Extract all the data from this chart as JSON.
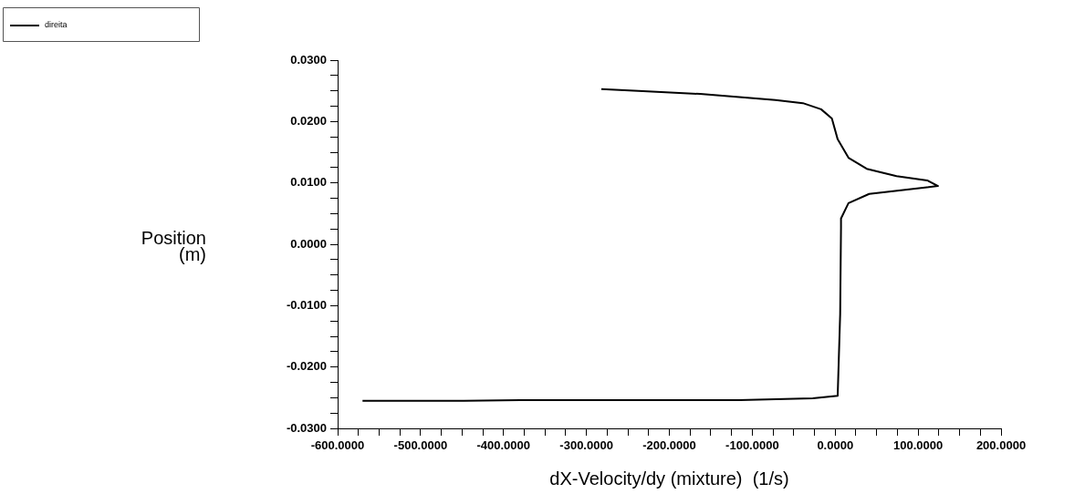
{
  "chart_data": {
    "type": "line",
    "xlabel": "dX-Velocity/dy (mixture)  (1/s)",
    "ylabel": "Position (m)",
    "legend": "top left",
    "grid": false,
    "marker": "none",
    "line_style": "solid",
    "xlim": [
      -600,
      200
    ],
    "ylim": [
      -0.03,
      0.03
    ],
    "xticks": [
      {
        "value": -600,
        "label": "-600.0000"
      },
      {
        "value": -575,
        "label": null
      },
      {
        "value": -550,
        "label": null
      },
      {
        "value": -525,
        "label": null
      },
      {
        "value": -500,
        "label": "-500.0000"
      },
      {
        "value": -475,
        "label": null
      },
      {
        "value": -450,
        "label": null
      },
      {
        "value": -425,
        "label": null
      },
      {
        "value": -400,
        "label": "-400.0000"
      },
      {
        "value": -375,
        "label": null
      },
      {
        "value": -350,
        "label": null
      },
      {
        "value": -325,
        "label": null
      },
      {
        "value": -300,
        "label": "-300.0000"
      },
      {
        "value": -275,
        "label": null
      },
      {
        "value": -250,
        "label": null
      },
      {
        "value": -225,
        "label": null
      },
      {
        "value": -200,
        "label": "-200.0000"
      },
      {
        "value": -175,
        "label": null
      },
      {
        "value": -150,
        "label": null
      },
      {
        "value": -125,
        "label": null
      },
      {
        "value": -100,
        "label": "-100.0000"
      },
      {
        "value": -75,
        "label": null
      },
      {
        "value": -50,
        "label": null
      },
      {
        "value": -25,
        "label": null
      },
      {
        "value": 0,
        "label": "0.0000"
      },
      {
        "value": 25,
        "label": null
      },
      {
        "value": 50,
        "label": null
      },
      {
        "value": 75,
        "label": null
      },
      {
        "value": 100,
        "label": "100.0000"
      },
      {
        "value": 125,
        "label": null
      },
      {
        "value": 150,
        "label": null
      },
      {
        "value": 175,
        "label": null
      },
      {
        "value": 200,
        "label": "200.0000"
      }
    ],
    "yticks": [
      {
        "value": -0.03,
        "label": "-0.0300"
      },
      {
        "value": -0.0275,
        "label": null
      },
      {
        "value": -0.025,
        "label": null
      },
      {
        "value": -0.0225,
        "label": null
      },
      {
        "value": -0.02,
        "label": "-0.0200"
      },
      {
        "value": -0.0175,
        "label": null
      },
      {
        "value": -0.015,
        "label": null
      },
      {
        "value": -0.0125,
        "label": null
      },
      {
        "value": -0.01,
        "label": "-0.0100"
      },
      {
        "value": -0.0075,
        "label": null
      },
      {
        "value": -0.005,
        "label": null
      },
      {
        "value": -0.0025,
        "label": null
      },
      {
        "value": 0,
        "label": "0.0000"
      },
      {
        "value": 0.0025,
        "label": null
      },
      {
        "value": 0.005,
        "label": null
      },
      {
        "value": 0.0075,
        "label": null
      },
      {
        "value": 0.01,
        "label": "0.0100"
      },
      {
        "value": 0.0125,
        "label": null
      },
      {
        "value": 0.015,
        "label": null
      },
      {
        "value": 0.0175,
        "label": null
      },
      {
        "value": 0.02,
        "label": "0.0200"
      },
      {
        "value": 0.0225,
        "label": null
      },
      {
        "value": 0.025,
        "label": null
      },
      {
        "value": 0.0275,
        "label": null
      },
      {
        "value": 0.03,
        "label": "0.0300"
      }
    ],
    "series": [
      {
        "name": "direita",
        "color": "#000000",
        "x": [
          -570,
          -450,
          -380,
          -116,
          -27,
          3,
          6,
          7,
          7,
          16,
          41,
          124,
          111,
          74,
          38,
          16,
          3,
          -4,
          -17,
          -39,
          -72,
          -163,
          -237,
          -282
        ],
        "values": [
          -0.0255,
          -0.0255,
          -0.0254,
          -0.0254,
          -0.0251,
          -0.0247,
          -0.0114,
          0.0027,
          0.0042,
          0.0067,
          0.0082,
          0.0095,
          0.0104,
          0.0111,
          0.0123,
          0.0141,
          0.0171,
          0.0205,
          0.022,
          0.023,
          0.0235,
          0.0245,
          0.025,
          0.0253
        ]
      }
    ]
  }
}
